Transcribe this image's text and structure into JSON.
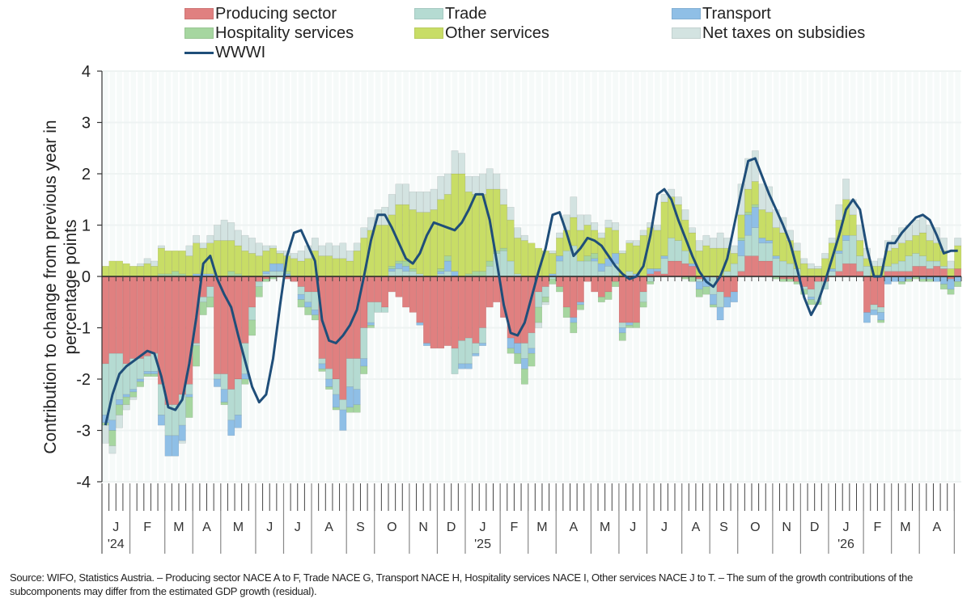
{
  "legend": {
    "items": [
      {
        "key": "producing",
        "label": "Producing sector",
        "color": "#e08080",
        "type": "bar"
      },
      {
        "key": "trade",
        "label": "Trade",
        "color": "#b5dbd2",
        "type": "bar"
      },
      {
        "key": "transport",
        "label": "Transport",
        "color": "#8fbfe6",
        "type": "bar"
      },
      {
        "key": "hospitality",
        "label": "Hospitality services",
        "color": "#a6d6a0",
        "type": "bar"
      },
      {
        "key": "other",
        "label": "Other services",
        "color": "#c8dd66",
        "type": "bar"
      },
      {
        "key": "taxes",
        "label": "Net taxes on subsidies",
        "color": "#d3e3e1",
        "type": "bar"
      },
      {
        "key": "wwwi",
        "label": "WWWI",
        "color": "#1f4e79",
        "type": "line"
      }
    ]
  },
  "footnote": "Source: WIFO, Statistics Austria. – Producing sector NACE A to F, Trade NACE G, Transport NACE H, Hospitality services NACE I, Other services NACE J to T. – The sum of the growth contributions of the subcomponents may differ from the estimated GDP growth (residual).",
  "chart_data": {
    "type": "bar",
    "stacked": true,
    "frequency": "weekly",
    "title": "",
    "xlabel": "",
    "ylabel": "Contribution to change from previous year in percentage points",
    "ylim": [
      -4,
      4
    ],
    "yticks": [
      -4,
      -3,
      -2,
      -1,
      0,
      1,
      2,
      3,
      4
    ],
    "grid": true,
    "legend_position": "top",
    "total_slots": 123,
    "months": [
      {
        "label": "J",
        "year": "'24",
        "weeks": 4
      },
      {
        "label": "F",
        "year": "",
        "weeks": 5
      },
      {
        "label": "M",
        "year": "",
        "weeks": 4
      },
      {
        "label": "A",
        "year": "",
        "weeks": 4
      },
      {
        "label": "M",
        "year": "",
        "weeks": 5
      },
      {
        "label": "J",
        "year": "",
        "weeks": 4
      },
      {
        "label": "J",
        "year": "",
        "weeks": 4
      },
      {
        "label": "A",
        "year": "",
        "weeks": 5
      },
      {
        "label": "S",
        "year": "",
        "weeks": 4
      },
      {
        "label": "O",
        "year": "",
        "weeks": 5
      },
      {
        "label": "N",
        "year": "",
        "weeks": 4
      },
      {
        "label": "D",
        "year": "",
        "weeks": 4
      },
      {
        "label": "J",
        "year": "'25",
        "weeks": 5
      },
      {
        "label": "F",
        "year": "",
        "weeks": 4
      },
      {
        "label": "M",
        "year": "",
        "weeks": 4
      },
      {
        "label": "A",
        "year": "",
        "weeks": 5
      },
      {
        "label": "M",
        "year": "",
        "weeks": 4
      },
      {
        "label": "J",
        "year": "",
        "weeks": 4
      },
      {
        "label": "J",
        "year": "",
        "weeks": 5
      },
      {
        "label": "A",
        "year": "",
        "weeks": 4
      },
      {
        "label": "S",
        "year": "",
        "weeks": 4
      },
      {
        "label": "O",
        "year": "",
        "weeks": 5
      },
      {
        "label": "N",
        "year": "",
        "weeks": 4
      },
      {
        "label": "D",
        "year": "",
        "weeks": 4
      },
      {
        "label": "J",
        "year": "'26",
        "weeks": 5
      },
      {
        "label": "F",
        "year": "",
        "weeks": 4
      },
      {
        "label": "M",
        "year": "",
        "weeks": 4
      },
      {
        "label": "A",
        "year": "",
        "weeks": 5
      }
    ],
    "series": [
      {
        "name": "Producing sector",
        "key": "producing",
        "values": [
          -1.7,
          -1.5,
          -1.5,
          -1.7,
          -1.6,
          -1.6,
          -1.55,
          -1.5,
          -2.1,
          -2.5,
          -2.5,
          -2.3,
          -2.1,
          -1.3,
          -0.4,
          -0.2,
          -1.9,
          -1.9,
          -2.2,
          -2.0,
          -1.3,
          -0.6,
          -0.1,
          -0.05,
          0.0,
          0.0,
          -0.05,
          -0.1,
          -0.2,
          -0.3,
          -0.3,
          -1.6,
          -1.8,
          -2.0,
          -2.4,
          -1.6,
          -1.6,
          -1.0,
          -0.5,
          -0.5,
          -0.6,
          -0.3,
          -0.4,
          -0.6,
          -0.7,
          -0.9,
          -1.3,
          -1.4,
          -1.4,
          -1.35,
          -1.4,
          -1.25,
          -1.2,
          -1.3,
          -1.0,
          -0.6,
          -0.5,
          -0.8,
          -1.2,
          -1.3,
          -1.3,
          -1.1,
          -0.3,
          -0.2,
          0.0,
          -0.2,
          -0.6,
          -0.8,
          -0.5,
          -0.1,
          -0.3,
          -0.4,
          -0.3,
          -0.1,
          -0.9,
          -0.9,
          -0.9,
          -0.3,
          0.05,
          0.1,
          0.05,
          0.3,
          0.3,
          0.25,
          0.2,
          -0.05,
          0.0,
          0.0,
          -0.3,
          -0.4,
          -0.3,
          0.1,
          0.4,
          0.4,
          0.3,
          0.3,
          0.0,
          -0.05,
          -0.05,
          -0.1,
          -0.2,
          -0.25,
          -0.1,
          -0.1,
          0.0,
          0.1,
          0.25,
          0.25,
          0.1,
          -0.7,
          -0.55,
          -0.6,
          0.1,
          0.1,
          0.1,
          0.1,
          0.2,
          0.2,
          0.15,
          0.2,
          0.15,
          -0.05,
          0.15
        ]
      },
      {
        "name": "Trade",
        "key": "trade",
        "values": [
          -1.0,
          -1.3,
          -0.9,
          -0.6,
          -0.6,
          -0.4,
          -0.3,
          -0.35,
          -0.6,
          -0.6,
          -0.6,
          -0.6,
          -0.2,
          -0.05,
          -0.1,
          -0.2,
          -0.1,
          -0.3,
          -0.6,
          -0.7,
          -0.6,
          -0.25,
          -0.1,
          0.05,
          0.1,
          0.1,
          0.0,
          0.0,
          -0.15,
          -0.2,
          -0.35,
          -0.1,
          -0.2,
          -0.3,
          -0.2,
          -0.55,
          -0.6,
          -0.6,
          -0.4,
          -0.2,
          -0.1,
          0.1,
          0.15,
          0.1,
          0.1,
          0.05,
          0.0,
          0.0,
          0.05,
          0.1,
          -0.5,
          -0.45,
          -0.5,
          -0.2,
          -0.3,
          0.2,
          0.45,
          0.5,
          0.3,
          0.05,
          -0.3,
          -0.3,
          -0.3,
          -0.2,
          -0.05,
          0.3,
          0.5,
          0.6,
          0.3,
          0.3,
          0.3,
          0.1,
          0.2,
          0.25,
          -0.1,
          0.1,
          0.0,
          -0.2,
          -0.1,
          0.0,
          0.3,
          0.45,
          0.4,
          0.25,
          0.0,
          -0.05,
          0.0,
          -0.35,
          -0.3,
          0.1,
          0.25,
          0.3,
          0.4,
          0.55,
          0.35,
          0.35,
          0.35,
          0.3,
          0.25,
          0.15,
          -0.05,
          -0.15,
          -0.4,
          -0.15,
          0.1,
          0.35,
          0.45,
          0.55,
          0.3,
          0.2,
          -0.1,
          -0.1,
          0.1,
          0.15,
          0.2,
          0.3,
          0.25,
          0.2,
          0.15,
          0.1,
          0.05,
          0.0,
          0.0
        ]
      },
      {
        "name": "Transport",
        "key": "transport",
        "values": [
          -0.15,
          -0.2,
          -0.1,
          -0.05,
          -0.05,
          -0.05,
          -0.05,
          -0.05,
          -0.2,
          -0.4,
          -0.4,
          -0.3,
          -0.05,
          0.05,
          0.05,
          0.05,
          -0.15,
          -0.25,
          -0.3,
          -0.25,
          -0.1,
          0.0,
          0.0,
          0.05,
          0.15,
          0.15,
          0.05,
          0.0,
          -0.1,
          -0.1,
          -0.1,
          -0.1,
          -0.15,
          -0.25,
          -0.4,
          -0.4,
          -0.3,
          -0.15,
          -0.05,
          0.0,
          0.0,
          0.05,
          0.1,
          0.1,
          0.0,
          -0.05,
          -0.05,
          0.0,
          0.05,
          0.2,
          0.1,
          -0.1,
          -0.1,
          -0.05,
          -0.05,
          0.0,
          0.0,
          0.0,
          -0.2,
          -0.2,
          -0.2,
          -0.1,
          0.0,
          0.0,
          0.05,
          0.1,
          0.0,
          -0.1,
          -0.05,
          0.0,
          0.05,
          0.15,
          0.15,
          0.2,
          -0.1,
          -0.05,
          0.05,
          0.0,
          0.1,
          0.05,
          0.05,
          0.0,
          0.0,
          0.0,
          0.05,
          -0.15,
          -0.2,
          -0.2,
          -0.25,
          -0.2,
          -0.2,
          0.3,
          0.4,
          0.4,
          0.1,
          0.05,
          0.05,
          0.0,
          0.0,
          0.0,
          0.0,
          -0.05,
          0.0,
          0.0,
          0.05,
          0.05,
          0.1,
          0.0,
          0.0,
          -0.2,
          -0.1,
          -0.15,
          -0.15,
          -0.1,
          -0.1,
          -0.05,
          0.0,
          -0.05,
          -0.05,
          -0.1,
          -0.15,
          -0.2,
          -0.1
        ]
      },
      {
        "name": "Hospitality services",
        "key": "hospitality",
        "values": [
          -0.05,
          -0.3,
          -0.2,
          -0.15,
          -0.1,
          -0.1,
          -0.05,
          -0.05,
          0.05,
          0.05,
          0.1,
          0.05,
          -0.4,
          -0.4,
          -0.25,
          -0.2,
          0.0,
          -0.05,
          0.1,
          0.05,
          -0.1,
          -0.3,
          -0.2,
          -0.05,
          -0.05,
          0.0,
          0.05,
          0.0,
          -0.15,
          -0.15,
          -0.1,
          -0.05,
          -0.05,
          -0.05,
          0.0,
          -0.1,
          -0.15,
          -0.15,
          -0.05,
          0.0,
          0.0,
          0.05,
          0.05,
          0.1,
          0.05,
          0.0,
          0.0,
          0.0,
          0.05,
          0.1,
          0.0,
          0.0,
          0.05,
          0.1,
          0.1,
          0.1,
          0.05,
          0.05,
          -0.1,
          -0.2,
          -0.3,
          -0.25,
          -0.3,
          -0.1,
          -0.1,
          -0.1,
          -0.2,
          -0.2,
          -0.1,
          0.1,
          0.1,
          -0.1,
          -0.15,
          -0.1,
          -0.15,
          -0.05,
          -0.1,
          -0.1,
          -0.05,
          0.0,
          0.0,
          0.0,
          0.0,
          -0.05,
          -0.1,
          -0.15,
          -0.15,
          -0.05,
          0.0,
          0.0,
          0.0,
          0.05,
          0.05,
          0.05,
          0.0,
          0.0,
          -0.05,
          -0.05,
          -0.05,
          -0.05,
          -0.1,
          -0.1,
          -0.05,
          0.0,
          0.0,
          0.0,
          0.0,
          0.0,
          0.0,
          0.0,
          0.0,
          -0.05,
          0.0,
          0.0,
          -0.05,
          -0.05,
          -0.05,
          -0.05,
          -0.05,
          0.0,
          -0.1,
          -0.1,
          -0.1
        ]
      },
      {
        "name": "Other services",
        "key": "other",
        "values": [
          0.2,
          0.3,
          0.3,
          0.25,
          0.2,
          0.2,
          0.25,
          0.2,
          0.5,
          0.45,
          0.4,
          0.45,
          0.4,
          0.6,
          0.5,
          0.6,
          0.7,
          0.7,
          0.6,
          0.55,
          0.5,
          0.45,
          0.4,
          0.4,
          0.3,
          0.2,
          0.3,
          0.35,
          0.3,
          0.35,
          0.5,
          0.4,
          0.4,
          0.35,
          0.35,
          0.3,
          0.5,
          0.75,
          0.9,
          1.0,
          1.0,
          1.0,
          1.1,
          1.1,
          1.15,
          1.2,
          1.25,
          1.3,
          1.35,
          1.2,
          1.9,
          2.0,
          1.6,
          1.5,
          1.5,
          1.4,
          1.2,
          0.85,
          0.8,
          0.7,
          0.7,
          0.65,
          0.55,
          0.5,
          0.4,
          0.35,
          0.4,
          0.55,
          0.6,
          0.6,
          0.45,
          0.5,
          0.6,
          0.45,
          0.45,
          0.55,
          0.55,
          0.8,
          0.8,
          0.75,
          1.05,
          0.8,
          0.7,
          0.6,
          0.6,
          0.5,
          0.6,
          0.55,
          0.55,
          0.45,
          0.2,
          0.45,
          0.45,
          0.45,
          0.55,
          0.55,
          0.55,
          0.55,
          0.45,
          0.35,
          0.25,
          0.15,
          0.15,
          0.35,
          0.5,
          0.6,
          0.7,
          0.4,
          0.3,
          0.15,
          0.2,
          0.2,
          0.3,
          0.3,
          0.35,
          0.3,
          0.35,
          0.45,
          0.4,
          0.35,
          0.3,
          0.15,
          0.45
        ]
      },
      {
        "name": "Net taxes on subsidies",
        "key": "taxes",
        "values": [
          -0.35,
          -0.15,
          -0.25,
          -0.1,
          -0.05,
          0.05,
          0.1,
          0.1,
          0.05,
          0.0,
          0.0,
          -0.05,
          0.2,
          0.15,
          0.1,
          0.15,
          0.3,
          0.4,
          0.35,
          0.3,
          0.3,
          0.3,
          0.25,
          0.1,
          0.05,
          0.05,
          0.1,
          0.1,
          0.2,
          0.25,
          0.25,
          0.2,
          0.25,
          0.25,
          0.3,
          0.2,
          0.15,
          0.2,
          0.25,
          0.3,
          0.35,
          0.4,
          0.4,
          0.4,
          0.35,
          0.4,
          0.4,
          0.4,
          0.45,
          0.4,
          0.45,
          0.4,
          0.3,
          0.35,
          0.4,
          0.4,
          0.3,
          0.3,
          0.25,
          0.2,
          0.1,
          0.0,
          -0.1,
          -0.05,
          0.05,
          0.1,
          0.3,
          0.4,
          0.3,
          0.2,
          0.15,
          0.1,
          0.15,
          0.15,
          0.05,
          0.05,
          0.1,
          0.1,
          0.1,
          0.1,
          0.15,
          0.15,
          0.15,
          0.2,
          0.1,
          0.2,
          0.2,
          0.2,
          0.3,
          0.2,
          0.15,
          0.6,
          0.6,
          0.6,
          0.5,
          0.5,
          0.35,
          0.3,
          0.2,
          0.15,
          0.1,
          0.1,
          0.05,
          0.1,
          0.1,
          0.3,
          0.4,
          0.3,
          0.3,
          0.2,
          0.1,
          0.15,
          0.2,
          0.25,
          0.3,
          0.3,
          0.3,
          0.3,
          0.3,
          0.3,
          0.25,
          0.15,
          0.15
        ]
      },
      {
        "name": "WWWI",
        "key": "wwwi",
        "type": "line",
        "values": [
          -2.9,
          -2.3,
          -1.9,
          -1.75,
          -1.65,
          -1.55,
          -1.45,
          -1.5,
          -1.95,
          -2.55,
          -2.6,
          -2.4,
          -1.7,
          -0.8,
          0.25,
          0.4,
          -0.05,
          -0.35,
          -0.6,
          -1.15,
          -1.65,
          -2.15,
          -2.45,
          -2.3,
          -1.6,
          -0.55,
          0.4,
          0.85,
          0.9,
          0.6,
          0.3,
          -0.85,
          -1.25,
          -1.3,
          -1.15,
          -0.95,
          -0.65,
          0.0,
          0.7,
          1.2,
          1.2,
          0.95,
          0.65,
          0.35,
          0.25,
          0.45,
          0.8,
          1.05,
          1.0,
          0.95,
          0.9,
          1.05,
          1.3,
          1.6,
          1.6,
          1.1,
          0.3,
          -0.55,
          -1.1,
          -1.15,
          -0.9,
          -0.4,
          0.1,
          0.55,
          1.2,
          1.25,
          0.85,
          0.4,
          0.55,
          0.75,
          0.7,
          0.6,
          0.4,
          0.2,
          0.05,
          -0.05,
          0.0,
          0.2,
          0.8,
          1.6,
          1.7,
          1.5,
          1.1,
          0.75,
          0.4,
          0.1,
          -0.1,
          -0.2,
          0.0,
          0.35,
          1.0,
          1.65,
          2.25,
          2.3,
          1.95,
          1.6,
          1.3,
          1.0,
          0.65,
          0.15,
          -0.4,
          -0.75,
          -0.5,
          -0.1,
          0.35,
          0.8,
          1.3,
          1.5,
          1.3,
          0.55,
          0.0,
          0.0,
          0.65,
          0.65,
          0.85,
          1.0,
          1.15,
          1.2,
          1.1,
          0.8,
          0.45,
          0.5,
          0.5
        ]
      }
    ]
  }
}
